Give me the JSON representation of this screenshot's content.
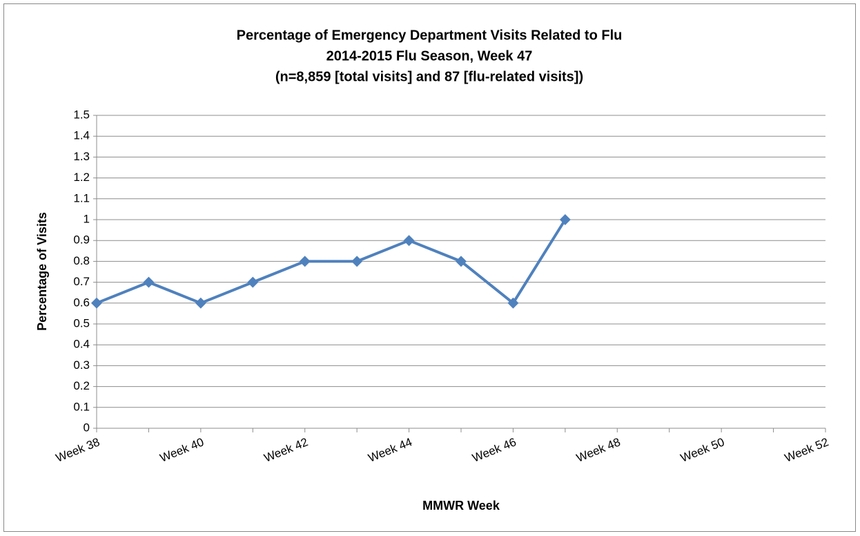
{
  "chart_data": {
    "type": "line",
    "title": [
      "Percentage of Emergency Department Visits Related to Flu",
      "2014-2015 Flu Season, Week 47",
      "(n=8,859 [total visits] and 87 [flu-related visits])"
    ],
    "x_label": "MMWR Week",
    "y_label": "Percentage of Visits",
    "categories": [
      "Week 38",
      null,
      "Week 40",
      null,
      "Week 42",
      null,
      "Week 44",
      null,
      "Week 46",
      null,
      "Week 48",
      null,
      "Week 50",
      null,
      "Week 52"
    ],
    "series": [
      {
        "name": "Percentage of Visits",
        "color": "#4f81bd",
        "values": [
          0.6,
          0.7,
          0.6,
          0.7,
          0.8,
          0.8,
          0.9,
          0.8,
          0.6,
          1.0,
          null,
          null,
          null,
          null,
          null
        ]
      }
    ],
    "ylim": [
      0,
      1.5
    ],
    "yticks": [
      0,
      0.1,
      0.2,
      0.3,
      0.4,
      0.5,
      0.6,
      0.7,
      0.8,
      0.9,
      1,
      1.1,
      1.2,
      1.3,
      1.4,
      1.5
    ],
    "grid": true,
    "legend": false
  }
}
